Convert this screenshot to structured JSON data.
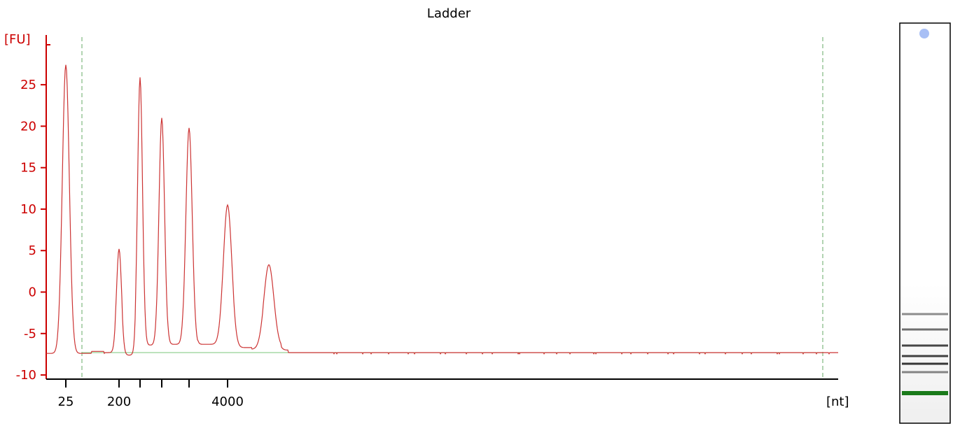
{
  "chart_data": {
    "type": "line",
    "title": "Ladder",
    "y_unit": "[FU]",
    "x_unit": "[nt]",
    "ylim": [
      -10.5,
      31
    ],
    "y_ticks": [
      25,
      20,
      15,
      10,
      5,
      0,
      -5,
      -10
    ],
    "x_tick_labels": [
      "25",
      "200",
      "4000"
    ],
    "x_unlabeled_ticks": 3,
    "baseline_level": -7.3,
    "peaks": [
      {
        "label": "25",
        "height": 27.5
      },
      {
        "label": "200",
        "height": 4.8
      },
      {
        "label": "",
        "height": 25.3
      },
      {
        "label": "",
        "height": 20.3
      },
      {
        "label": "",
        "height": 19.0
      },
      {
        "label": "4000",
        "height": 9.6
      },
      {
        "label": "",
        "height": 2.7
      }
    ],
    "line_color": "#cc3333",
    "baseline_color": "#88cc88",
    "axis_color": "#cc0000",
    "marker_color": "#66aa66",
    "gel": {
      "lower_marker_color": "#1a7a1a",
      "upper_marker_color": "#a8bff5"
    }
  }
}
